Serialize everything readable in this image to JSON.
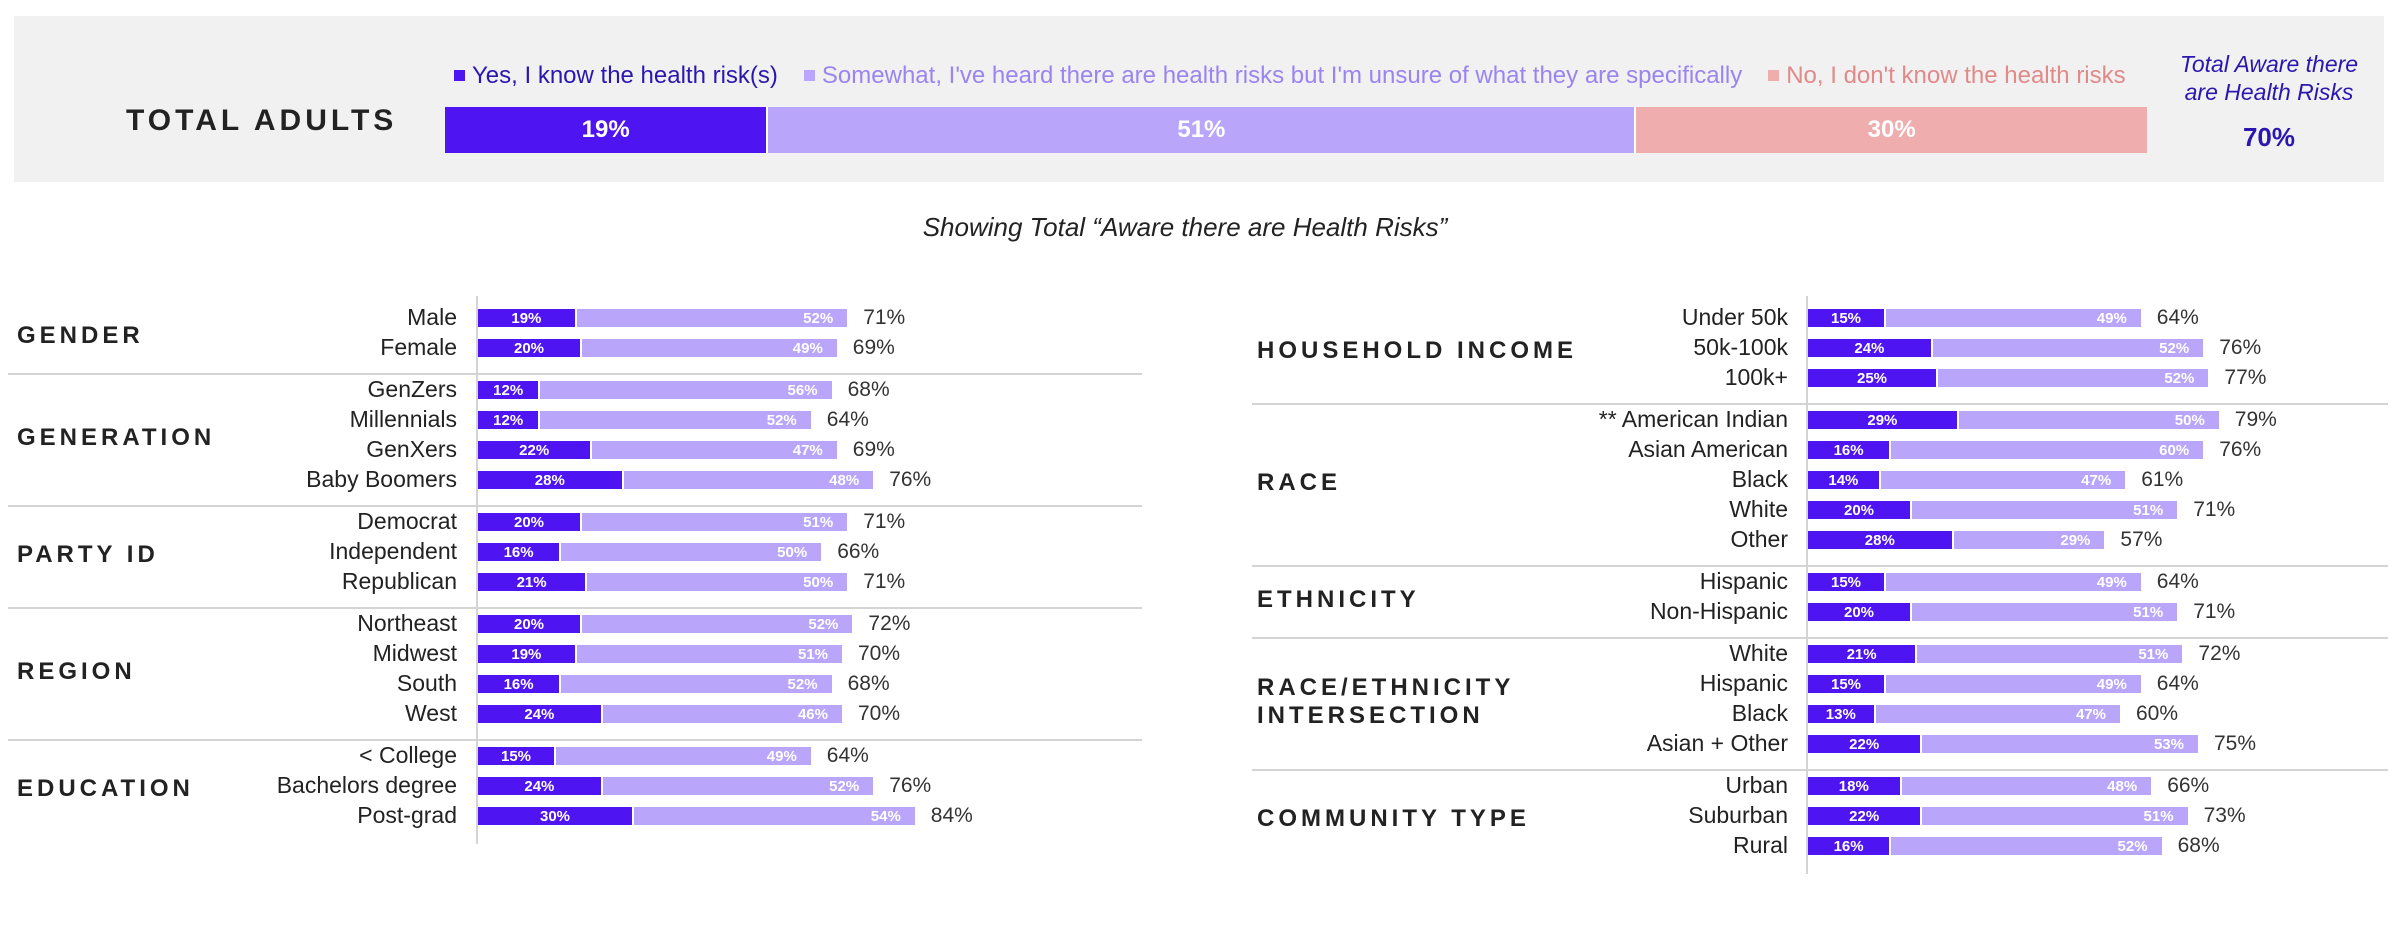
{
  "header": {
    "title": "TOTAL ADULTS",
    "aware_title": "Total Aware there are Health Risks",
    "aware_value": "70%"
  },
  "subtitle": "Showing Total “Aware there are Health Risks”",
  "colors": {
    "yes": "#4e14f2",
    "somewhat": "#b9a6fb",
    "no": "#efadad"
  },
  "chart_data": {
    "type": "bar",
    "orientation": "horizontal",
    "stacked": true,
    "legend": [
      "Yes, I know the health risk(s)",
      "Somewhat, I've heard there are health risks but I'm unsure of what they are specifically",
      "No, I don't know the health risks"
    ],
    "total": {
      "yes": "19%",
      "somewhat": "51%",
      "no": "30%",
      "aware": "70%"
    },
    "left_groups": [
      {
        "label": "GENDER",
        "rows": [
          {
            "label": "Male",
            "yes": "19%",
            "somewhat": "52%",
            "total": "71%"
          },
          {
            "label": "Female",
            "yes": "20%",
            "somewhat": "49%",
            "total": "69%"
          }
        ]
      },
      {
        "label": "GENERATION",
        "rows": [
          {
            "label": "GenZers",
            "yes": "12%",
            "somewhat": "56%",
            "total": "68%"
          },
          {
            "label": "Millennials",
            "yes": "12%",
            "somewhat": "52%",
            "total": "64%"
          },
          {
            "label": "GenXers",
            "yes": "22%",
            "somewhat": "47%",
            "total": "69%"
          },
          {
            "label": "Baby Boomers",
            "yes": "28%",
            "somewhat": "48%",
            "total": "76%"
          }
        ]
      },
      {
        "label": "PARTY ID",
        "rows": [
          {
            "label": "Democrat",
            "yes": "20%",
            "somewhat": "51%",
            "total": "71%"
          },
          {
            "label": "Independent",
            "yes": "16%",
            "somewhat": "50%",
            "total": "66%"
          },
          {
            "label": "Republican",
            "yes": "21%",
            "somewhat": "50%",
            "total": "71%"
          }
        ]
      },
      {
        "label": "REGION",
        "rows": [
          {
            "label": "Northeast",
            "yes": "20%",
            "somewhat": "52%",
            "total": "72%"
          },
          {
            "label": "Midwest",
            "yes": "19%",
            "somewhat": "51%",
            "total": "70%"
          },
          {
            "label": "South",
            "yes": "16%",
            "somewhat": "52%",
            "total": "68%"
          },
          {
            "label": "West",
            "yes": "24%",
            "somewhat": "46%",
            "total": "70%"
          }
        ]
      },
      {
        "label": "EDUCATION",
        "rows": [
          {
            "label": "< College",
            "yes": "15%",
            "somewhat": "49%",
            "total": "64%"
          },
          {
            "label": "Bachelors degree",
            "yes": "24%",
            "somewhat": "52%",
            "total": "76%"
          },
          {
            "label": "Post-grad",
            "yes": "30%",
            "somewhat": "54%",
            "total": "84%"
          }
        ]
      }
    ],
    "right_groups": [
      {
        "label": "HOUSEHOLD INCOME",
        "rows": [
          {
            "label": "Under 50k",
            "yes": "15%",
            "somewhat": "49%",
            "total": "64%"
          },
          {
            "label": "50k-100k",
            "yes": "24%",
            "somewhat": "52%",
            "total": "76%"
          },
          {
            "label": "100k+",
            "yes": "25%",
            "somewhat": "52%",
            "total": "77%"
          }
        ]
      },
      {
        "label": "RACE",
        "rows": [
          {
            "label": "**  American Indian",
            "yes": "29%",
            "somewhat": "50%",
            "total": "79%"
          },
          {
            "label": "Asian American",
            "yes": "16%",
            "somewhat": "60%",
            "total": "76%"
          },
          {
            "label": "Black",
            "yes": "14%",
            "somewhat": "47%",
            "total": "61%"
          },
          {
            "label": "White",
            "yes": "20%",
            "somewhat": "51%",
            "total": "71%"
          },
          {
            "label": "Other",
            "yes": "28%",
            "somewhat": "29%",
            "total": "57%"
          }
        ]
      },
      {
        "label": "ETHNICITY",
        "rows": [
          {
            "label": "Hispanic",
            "yes": "15%",
            "somewhat": "49%",
            "total": "64%"
          },
          {
            "label": "Non-Hispanic",
            "yes": "20%",
            "somewhat": "51%",
            "total": "71%"
          }
        ]
      },
      {
        "label": "RACE/ETHNICITY\nINTERSECTION",
        "rows": [
          {
            "label": "White",
            "yes": "21%",
            "somewhat": "51%",
            "total": "72%"
          },
          {
            "label": "Hispanic",
            "yes": "15%",
            "somewhat": "49%",
            "total": "64%"
          },
          {
            "label": "Black",
            "yes": "13%",
            "somewhat": "47%",
            "total": "60%"
          },
          {
            "label": "Asian + Other",
            "yes": "22%",
            "somewhat": "53%",
            "total": "75%"
          }
        ]
      },
      {
        "label": "COMMUNITY TYPE",
        "rows": [
          {
            "label": "Urban",
            "yes": "18%",
            "somewhat": "48%",
            "total": "66%"
          },
          {
            "label": "Suburban",
            "yes": "22%",
            "somewhat": "51%",
            "total": "73%"
          },
          {
            "label": "Rural",
            "yes": "16%",
            "somewhat": "52%",
            "total": "68%"
          }
        ]
      }
    ]
  }
}
